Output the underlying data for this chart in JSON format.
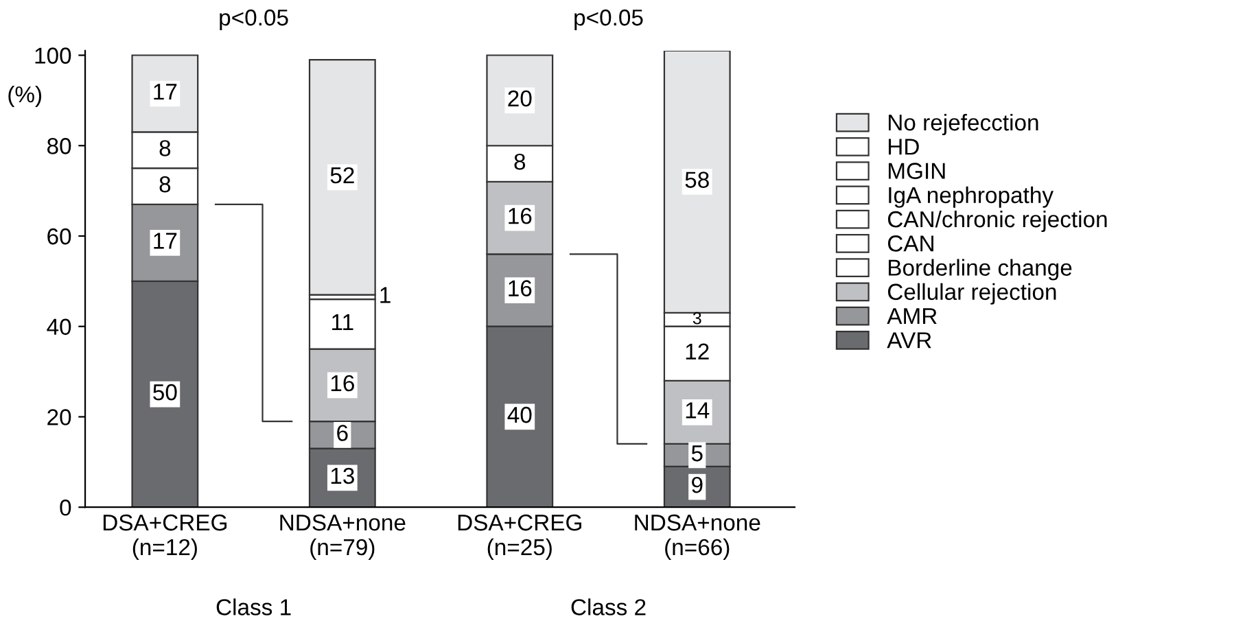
{
  "chart_data": {
    "type": "bar",
    "stacked": true,
    "ylabel": "(%)",
    "categories": [
      "DSA+CREG\n(n=12)",
      "NDSA+none\n(n=79)",
      "DSA+CREG\n(n=25)",
      "NDSA+none\n(n=66)"
    ],
    "series": [
      {
        "name": "AVR",
        "color": "#6a6b6f",
        "values": [
          50,
          13,
          40,
          9
        ]
      },
      {
        "name": "AMR",
        "color": "#96979b",
        "values": [
          17,
          6,
          16,
          5
        ]
      },
      {
        "name": "Cellular rejection",
        "color": "#bfc0c3",
        "values": [
          null,
          16,
          16,
          14
        ]
      },
      {
        "name": "Borderline change",
        "color": "#ffffff",
        "values": [
          8,
          11,
          8,
          12
        ]
      },
      {
        "name": "CAN",
        "color": "#ffffff",
        "values": [
          8,
          null,
          null,
          3
        ]
      },
      {
        "name": "CAN/chronic rejection",
        "color": "#ffffff",
        "values": [
          null,
          null,
          null,
          null
        ]
      },
      {
        "name": "IgA nephropathy",
        "color": "#ffffff",
        "values": [
          null,
          null,
          null,
          null
        ]
      },
      {
        "name": "MGIN",
        "color": "#ffffff",
        "values": [
          null,
          null,
          null,
          null
        ]
      },
      {
        "name": "HD",
        "color": "#ffffff",
        "values": [
          null,
          1,
          null,
          null
        ]
      },
      {
        "name": "No rejefecction",
        "color": "#e4e5e6",
        "values": [
          17,
          52,
          20,
          58
        ]
      }
    ],
    "ylim": [
      0,
      101
    ],
    "yticks": [
      0,
      20,
      40,
      60,
      80,
      100
    ],
    "data_labels": true,
    "legend": "right",
    "grid": false,
    "annotations": [
      "p<0.05",
      "p<0.05",
      "Class 1",
      "Class 2"
    ]
  }
}
